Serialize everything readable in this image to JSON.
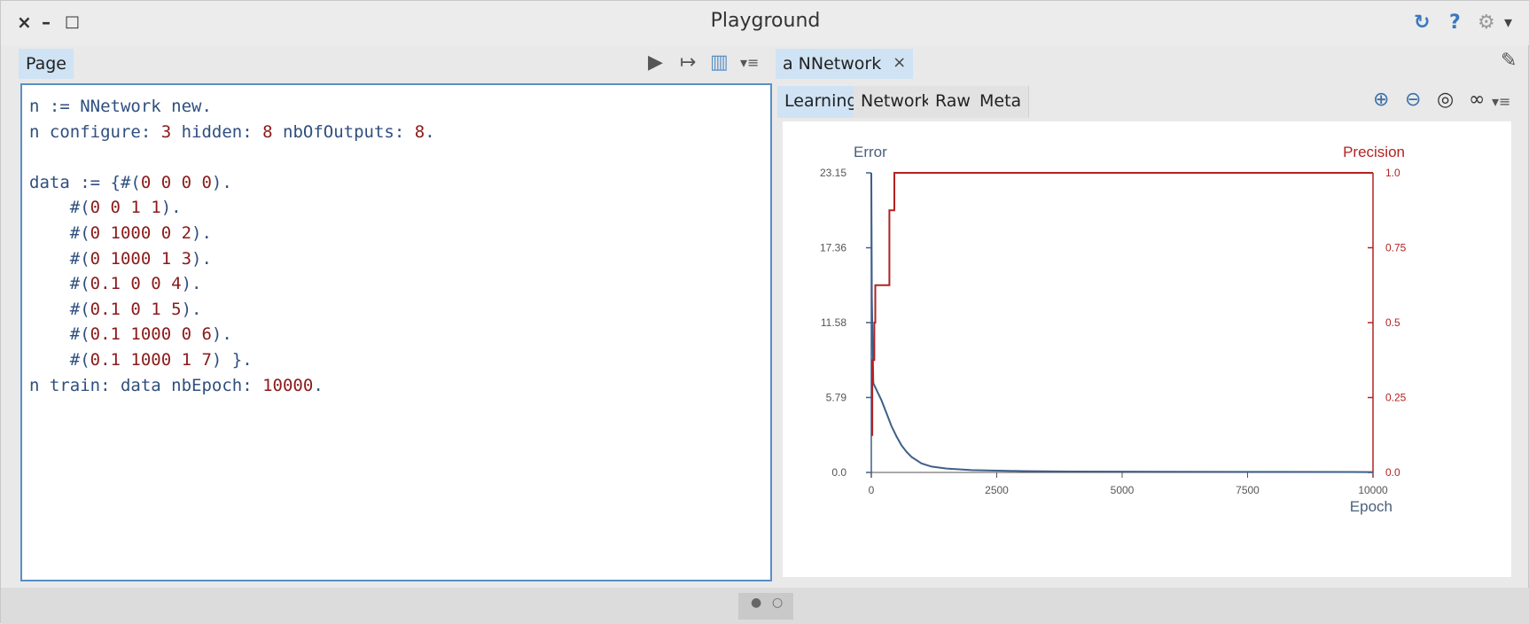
{
  "window": {
    "title": "Playground",
    "close_glyph": "×",
    "minimize_glyph": "–",
    "maximize_glyph": "□",
    "help_glyph": "?",
    "sync_glyph": "↻",
    "settings_glyph": "⚙",
    "dropdown_glyph": "▾"
  },
  "left": {
    "tab_label": "Page",
    "toolbar": {
      "run_glyph": "▶",
      "inspect_glyph": "↦",
      "columns_glyph": "▥",
      "menu_glyph": "▾≡"
    },
    "code_lines": [
      [
        [
          "kw",
          "n := NNetwork "
        ],
        [
          "kw",
          "new."
        ]
      ],
      [
        [
          "kw",
          "n configure: "
        ],
        [
          "lit",
          "3"
        ],
        [
          "kw",
          " hidden: "
        ],
        [
          "lit",
          "8"
        ],
        [
          "kw",
          " nbOfOutputs: "
        ],
        [
          "lit",
          "8"
        ],
        [
          "kw",
          "."
        ]
      ],
      [],
      [
        [
          "kw",
          "data := {#("
        ],
        [
          "lit",
          "0 0 0 0"
        ],
        [
          "kw",
          ")."
        ]
      ],
      [
        [
          "kw",
          "    #("
        ],
        [
          "lit",
          "0 0 1 1"
        ],
        [
          "kw",
          ")."
        ]
      ],
      [
        [
          "kw",
          "    #("
        ],
        [
          "lit",
          "0 1000 0 2"
        ],
        [
          "kw",
          ")."
        ]
      ],
      [
        [
          "kw",
          "    #("
        ],
        [
          "lit",
          "0 1000 1 3"
        ],
        [
          "kw",
          ")."
        ]
      ],
      [
        [
          "kw",
          "    #("
        ],
        [
          "lit",
          "0.1 0 0 4"
        ],
        [
          "kw",
          ")."
        ]
      ],
      [
        [
          "kw",
          "    #("
        ],
        [
          "lit",
          "0.1 0 1 5"
        ],
        [
          "kw",
          ")."
        ]
      ],
      [
        [
          "kw",
          "    #("
        ],
        [
          "lit",
          "0.1 1000 0 6"
        ],
        [
          "kw",
          ")."
        ]
      ],
      [
        [
          "kw",
          "    #("
        ],
        [
          "lit",
          "0.1 1000 1 7"
        ],
        [
          "kw",
          ") }."
        ]
      ],
      [
        [
          "kw",
          "n train: data nbEpoch: "
        ],
        [
          "lit",
          "10000"
        ],
        [
          "kw",
          "."
        ]
      ]
    ]
  },
  "right": {
    "tab_label": "a NNetwork",
    "tab_close_glyph": "×",
    "edit_glyph": "✎",
    "subtabs": [
      "Learning",
      "Network",
      "Raw",
      "Meta"
    ],
    "active_subtab": 0,
    "toolbar": {
      "zoom_in_glyph": "⊕",
      "zoom_out_glyph": "⊖",
      "zoom_fit_glyph": "◎",
      "glasses_glyph": "∞",
      "menu_glyph": "▾≡"
    }
  },
  "pager": {
    "dot_active": "●",
    "dot_inactive": "○"
  },
  "colors": {
    "error_line": "#3e5f8a",
    "precision_line": "#b22222",
    "accent": "#cfe3f4"
  },
  "chart_data": {
    "type": "line",
    "xlabel": "Epoch",
    "y_left_label": "Error",
    "y_right_label": "Precision",
    "x_ticks": [
      "0",
      "2500",
      "5000",
      "7500",
      "10000"
    ],
    "x_tick_values": [
      0,
      2500,
      5000,
      7500,
      10000
    ],
    "y_left_ticks": [
      "0.0",
      "5.79",
      "11.58",
      "17.36",
      "23.15"
    ],
    "y_left_tick_values": [
      0,
      5.79,
      11.58,
      17.36,
      23.15
    ],
    "y_right_ticks": [
      "0.0",
      "0.25",
      "0.5",
      "0.75",
      "1.0"
    ],
    "y_right_tick_values": [
      0,
      0.25,
      0.5,
      0.75,
      1.0
    ],
    "xlim": [
      0,
      10000
    ],
    "ylim_left": [
      0,
      23.15
    ],
    "ylim_right": [
      0,
      1.0
    ],
    "series": [
      {
        "name": "Error",
        "axis": "left",
        "color": "#3e5f8a",
        "x": [
          0,
          10,
          40,
          100,
          200,
          300,
          400,
          500,
          600,
          700,
          800,
          1000,
          1200,
          1500,
          2000,
          3000,
          4000,
          6000,
          8000,
          10000
        ],
        "y": [
          23.15,
          13.5,
          6.9,
          6.4,
          5.6,
          4.6,
          3.6,
          2.8,
          2.1,
          1.6,
          1.2,
          0.7,
          0.45,
          0.3,
          0.18,
          0.1,
          0.07,
          0.05,
          0.04,
          0.03
        ]
      },
      {
        "name": "Precision",
        "axis": "right",
        "color": "#b22222",
        "x": [
          0,
          20,
          20,
          60,
          60,
          80,
          80,
          140,
          140,
          360,
          360,
          460,
          460,
          500,
          500,
          10000
        ],
        "y": [
          0.125,
          0.125,
          0.375,
          0.375,
          0.5,
          0.5,
          0.625,
          0.625,
          0.625,
          0.625,
          0.875,
          0.875,
          1.0,
          1.0,
          1.0,
          1.0
        ]
      }
    ]
  }
}
